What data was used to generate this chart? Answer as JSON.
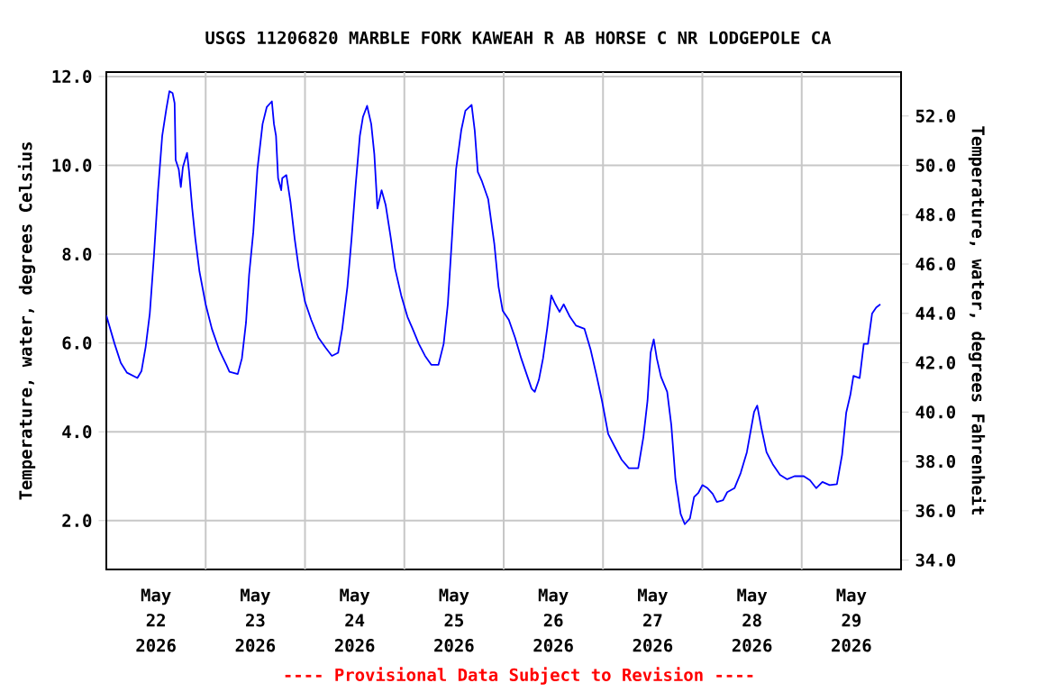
{
  "chart_data": {
    "type": "line",
    "title": "USGS 11206820 MARBLE FORK KAWEAH R AB HORSE C NR LODGEPOLE CA",
    "ylabel": "Temperature, water, degrees Celsius",
    "y2label": "Temperature, water, degrees Fahrenheit",
    "annotations": [
      "---- Provisional Data Subject to Revision ----"
    ],
    "color": "#0000ff",
    "grid": true,
    "xlim": [
      "2026-05-22T00:00",
      "2026-05-30T00:00"
    ],
    "xticks": [
      {
        "value": "2026-05-22T12:00",
        "label": "May 22 2026"
      },
      {
        "value": "2026-05-23T12:00",
        "label": "May 23 2026"
      },
      {
        "value": "2026-05-24T12:00",
        "label": "May 24 2026"
      },
      {
        "value": "2026-05-25T12:00",
        "label": "May 25 2026"
      },
      {
        "value": "2026-05-26T12:00",
        "label": "May 26 2026"
      },
      {
        "value": "2026-05-27T12:00",
        "label": "May 27 2026"
      },
      {
        "value": "2026-05-28T12:00",
        "label": "May 28 2026"
      },
      {
        "value": "2026-05-29T12:00",
        "label": "May 29 2026"
      },
      {
        "value": "2026-05-23T00:00",
        "label": null
      },
      {
        "value": "2026-05-24T00:00",
        "label": null
      },
      {
        "value": "2026-05-25T00:00",
        "label": null
      },
      {
        "value": "2026-05-26T00:00",
        "label": null
      },
      {
        "value": "2026-05-27T00:00",
        "label": null
      },
      {
        "value": "2026-05-28T00:00",
        "label": null
      },
      {
        "value": "2026-05-29T00:00",
        "label": null
      }
    ],
    "ylim": [
      0.9,
      12.1
    ],
    "yticks": [
      {
        "value": 2,
        "label": "2.0"
      },
      {
        "value": 4,
        "label": "4.0"
      },
      {
        "value": 6,
        "label": "6.0"
      },
      {
        "value": 8,
        "label": "8.0"
      },
      {
        "value": 10,
        "label": "10.0"
      },
      {
        "value": 12,
        "label": "12.0"
      }
    ],
    "y2lim": [
      33.62,
      53.78
    ],
    "y2ticks": [
      {
        "value": 34,
        "label": "34.0"
      },
      {
        "value": 36,
        "label": "36.0"
      },
      {
        "value": 38,
        "label": "38.0"
      },
      {
        "value": 40,
        "label": "40.0"
      },
      {
        "value": 42,
        "label": "42.0"
      },
      {
        "value": 44,
        "label": "44.0"
      },
      {
        "value": 46,
        "label": "46.0"
      },
      {
        "value": 48,
        "label": "48.0"
      },
      {
        "value": 50,
        "label": "50.0"
      },
      {
        "value": 52,
        "label": "52.0"
      }
    ],
    "x": [
      "2026-05-22T00:00",
      "2026-05-22T02:00",
      "2026-05-22T03:30",
      "2026-05-22T05:00",
      "2026-05-22T07:30",
      "2026-05-22T08:30",
      "2026-05-22T09:30",
      "2026-05-22T10:30",
      "2026-05-22T11:30",
      "2026-05-22T12:30",
      "2026-05-22T13:30",
      "2026-05-22T14:30",
      "2026-05-22T15:15",
      "2026-05-22T16:00",
      "2026-05-22T16:30",
      "2026-05-22T16:45",
      "2026-05-22T17:30",
      "2026-05-22T18:00",
      "2026-05-22T18:30",
      "2026-05-22T19:30",
      "2026-05-22T20:00",
      "2026-05-22T20:45",
      "2026-05-22T21:30",
      "2026-05-22T22:30",
      "2026-05-23T00:00",
      "2026-05-23T01:30",
      "2026-05-23T03:15",
      "2026-05-23T05:00",
      "2026-05-23T05:45",
      "2026-05-23T07:45",
      "2026-05-23T08:45",
      "2026-05-23T09:45",
      "2026-05-23T10:30",
      "2026-05-23T11:30",
      "2026-05-23T12:30",
      "2026-05-23T13:45",
      "2026-05-23T14:45",
      "2026-05-23T16:00",
      "2026-05-23T16:30",
      "2026-05-23T17:00",
      "2026-05-23T17:30",
      "2026-05-23T18:15",
      "2026-05-23T18:30",
      "2026-05-23T19:30",
      "2026-05-23T20:30",
      "2026-05-23T21:30",
      "2026-05-23T22:30",
      "2026-05-24T00:00",
      "2026-05-24T01:30",
      "2026-05-24T03:15",
      "2026-05-24T05:00",
      "2026-05-24T06:30",
      "2026-05-24T08:00",
      "2026-05-24T09:00",
      "2026-05-24T10:15",
      "2026-05-24T11:15",
      "2026-05-24T12:15",
      "2026-05-24T13:15",
      "2026-05-24T14:00",
      "2026-05-24T15:00",
      "2026-05-24T16:00",
      "2026-05-24T16:45",
      "2026-05-24T17:30",
      "2026-05-24T18:30",
      "2026-05-24T19:30",
      "2026-05-24T20:45",
      "2026-05-24T21:45",
      "2026-05-24T23:15",
      "2026-05-25T00:45",
      "2026-05-25T02:00",
      "2026-05-25T03:30",
      "2026-05-25T05:00",
      "2026-05-25T06:30",
      "2026-05-25T08:15",
      "2026-05-25T09:30",
      "2026-05-25T10:30",
      "2026-05-25T11:30",
      "2026-05-25T12:30",
      "2026-05-25T13:45",
      "2026-05-25T14:45",
      "2026-05-25T16:15",
      "2026-05-25T17:00",
      "2026-05-25T17:45",
      "2026-05-25T18:45",
      "2026-05-25T20:15",
      "2026-05-25T21:45",
      "2026-05-25T22:45",
      "2026-05-25T23:45",
      "2026-05-26T01:15",
      "2026-05-26T02:45",
      "2026-05-26T04:15",
      "2026-05-26T05:45",
      "2026-05-26T06:45",
      "2026-05-26T07:30",
      "2026-05-26T08:30",
      "2026-05-26T09:30",
      "2026-05-26T10:30",
      "2026-05-26T11:30",
      "2026-05-26T12:30",
      "2026-05-26T13:30",
      "2026-05-26T14:30",
      "2026-05-26T16:00",
      "2026-05-26T17:30",
      "2026-05-26T19:30",
      "2026-05-26T21:00",
      "2026-05-26T22:30",
      "2026-05-26T23:45",
      "2026-05-27T01:15",
      "2026-05-27T02:45",
      "2026-05-27T04:30",
      "2026-05-27T06:15",
      "2026-05-27T08:30",
      "2026-05-27T09:45",
      "2026-05-27T10:45",
      "2026-05-27T11:30",
      "2026-05-27T12:15",
      "2026-05-27T13:00",
      "2026-05-27T14:00",
      "2026-05-27T15:30",
      "2026-05-27T16:30",
      "2026-05-27T17:30",
      "2026-05-27T18:45",
      "2026-05-27T19:45",
      "2026-05-27T21:00",
      "2026-05-27T22:00",
      "2026-05-27T23:00",
      "2026-05-28T00:00",
      "2026-05-28T01:15",
      "2026-05-28T02:30",
      "2026-05-28T03:30",
      "2026-05-28T05:00",
      "2026-05-28T06:00",
      "2026-05-28T07:45",
      "2026-05-28T09:15",
      "2026-05-28T10:45",
      "2026-05-28T12:30",
      "2026-05-28T13:15",
      "2026-05-28T14:15",
      "2026-05-28T15:30",
      "2026-05-28T17:00",
      "2026-05-28T18:45",
      "2026-05-28T20:30",
      "2026-05-28T22:15",
      "2026-05-29T00:30",
      "2026-05-29T02:00",
      "2026-05-29T03:30",
      "2026-05-29T05:00",
      "2026-05-29T06:45",
      "2026-05-29T08:30",
      "2026-05-29T09:45",
      "2026-05-29T10:45",
      "2026-05-29T11:45",
      "2026-05-29T12:30",
      "2026-05-29T14:00",
      "2026-05-29T15:00",
      "2026-05-29T16:00",
      "2026-05-29T17:00",
      "2026-05-29T18:00",
      "2026-05-29T19:00"
    ],
    "values": [
      6.62,
      5.98,
      5.55,
      5.33,
      5.21,
      5.37,
      5.91,
      6.66,
      7.95,
      9.44,
      10.66,
      11.27,
      11.67,
      11.63,
      11.4,
      10.12,
      9.91,
      9.51,
      9.96,
      10.28,
      9.85,
      9.03,
      8.35,
      7.61,
      6.87,
      6.32,
      5.85,
      5.51,
      5.35,
      5.3,
      5.65,
      6.46,
      7.54,
      8.49,
      9.91,
      10.93,
      11.31,
      11.44,
      10.93,
      10.66,
      9.71,
      9.44,
      9.71,
      9.78,
      9.17,
      8.35,
      7.68,
      6.93,
      6.52,
      6.12,
      5.89,
      5.71,
      5.78,
      6.32,
      7.27,
      8.35,
      9.57,
      10.66,
      11.09,
      11.34,
      10.93,
      10.25,
      9.03,
      9.44,
      9.1,
      8.35,
      7.68,
      7.07,
      6.59,
      6.32,
      5.98,
      5.71,
      5.51,
      5.51,
      5.98,
      6.87,
      8.35,
      9.91,
      10.79,
      11.23,
      11.36,
      10.79,
      9.85,
      9.64,
      9.24,
      8.22,
      7.27,
      6.73,
      6.52,
      6.12,
      5.65,
      5.24,
      4.97,
      4.9,
      5.17,
      5.65,
      6.32,
      7.07,
      6.87,
      6.7,
      6.87,
      6.59,
      6.39,
      6.32,
      5.85,
      5.24,
      4.7,
      3.95,
      3.68,
      3.37,
      3.18,
      3.18,
      3.88,
      4.7,
      5.78,
      6.08,
      5.65,
      5.24,
      4.9,
      4.15,
      2.93,
      2.15,
      1.92,
      2.05,
      2.53,
      2.62,
      2.8,
      2.73,
      2.6,
      2.42,
      2.46,
      2.64,
      2.73,
      3.07,
      3.54,
      4.45,
      4.59,
      4.09,
      3.54,
      3.27,
      3.03,
      2.93,
      3.0,
      3.0,
      2.91,
      2.73,
      2.87,
      2.8,
      2.82,
      3.48,
      4.43,
      4.83,
      5.26,
      5.21,
      5.98,
      5.98,
      6.66,
      6.8,
      6.87
    ]
  }
}
